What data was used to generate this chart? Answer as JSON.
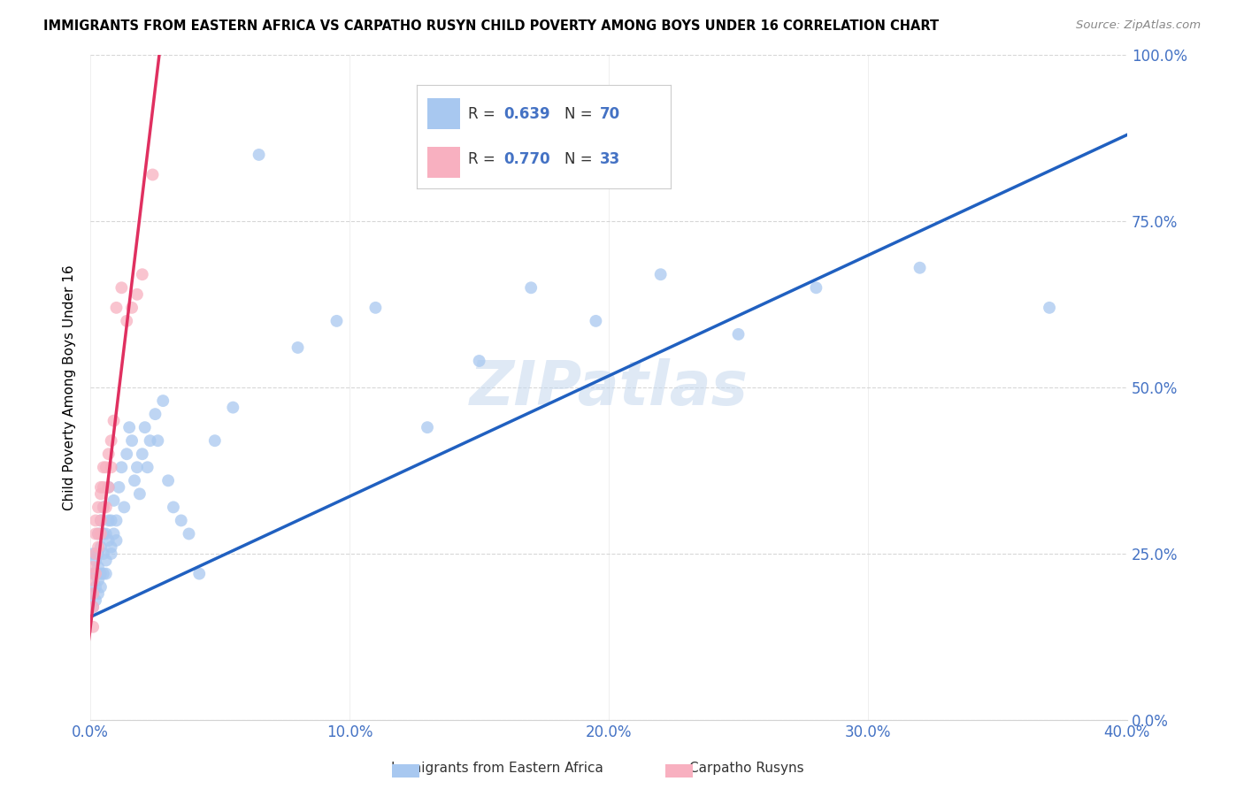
{
  "title": "IMMIGRANTS FROM EASTERN AFRICA VS CARPATHO RUSYN CHILD POVERTY AMONG BOYS UNDER 16 CORRELATION CHART",
  "source": "Source: ZipAtlas.com",
  "xlabel_blue": "Immigrants from Eastern Africa",
  "xlabel_pink": "Carpatho Rusyns",
  "ylabel": "Child Poverty Among Boys Under 16",
  "blue_R": 0.639,
  "blue_N": 70,
  "pink_R": 0.77,
  "pink_N": 33,
  "blue_color": "#A8C8F0",
  "pink_color": "#F8B0C0",
  "blue_line_color": "#2060C0",
  "pink_line_color": "#E03060",
  "watermark": "ZIPatlas",
  "xlim": [
    0.0,
    0.4
  ],
  "ylim": [
    0.0,
    1.0
  ],
  "blue_line_x0": 0.0,
  "blue_line_y0": 0.155,
  "blue_line_x1": 0.4,
  "blue_line_y1": 0.88,
  "pink_line_x0": 0.0,
  "pink_line_y0": 0.14,
  "pink_line_x1": 0.025,
  "pink_line_y1": 0.95,
  "pink_line_extend_x0": -0.003,
  "pink_line_extend_x1": 0.028,
  "blue_points_x": [
    0.001,
    0.001,
    0.001,
    0.001,
    0.002,
    0.002,
    0.002,
    0.002,
    0.003,
    0.003,
    0.003,
    0.003,
    0.003,
    0.004,
    0.004,
    0.004,
    0.004,
    0.005,
    0.005,
    0.005,
    0.005,
    0.006,
    0.006,
    0.006,
    0.007,
    0.007,
    0.007,
    0.008,
    0.008,
    0.008,
    0.009,
    0.009,
    0.01,
    0.01,
    0.011,
    0.012,
    0.013,
    0.014,
    0.015,
    0.016,
    0.017,
    0.018,
    0.019,
    0.02,
    0.021,
    0.022,
    0.023,
    0.025,
    0.026,
    0.028,
    0.03,
    0.032,
    0.035,
    0.038,
    0.042,
    0.048,
    0.055,
    0.065,
    0.08,
    0.095,
    0.11,
    0.13,
    0.15,
    0.17,
    0.195,
    0.22,
    0.25,
    0.28,
    0.32,
    0.37
  ],
  "blue_points_y": [
    0.19,
    0.22,
    0.17,
    0.25,
    0.2,
    0.24,
    0.18,
    0.22,
    0.25,
    0.21,
    0.19,
    0.28,
    0.23,
    0.26,
    0.22,
    0.3,
    0.2,
    0.25,
    0.32,
    0.22,
    0.28,
    0.24,
    0.28,
    0.22,
    0.3,
    0.27,
    0.35,
    0.26,
    0.3,
    0.25,
    0.28,
    0.33,
    0.3,
    0.27,
    0.35,
    0.38,
    0.32,
    0.4,
    0.44,
    0.42,
    0.36,
    0.38,
    0.34,
    0.4,
    0.44,
    0.38,
    0.42,
    0.46,
    0.42,
    0.48,
    0.36,
    0.32,
    0.3,
    0.28,
    0.22,
    0.42,
    0.47,
    0.85,
    0.56,
    0.6,
    0.62,
    0.44,
    0.54,
    0.65,
    0.6,
    0.67,
    0.58,
    0.65,
    0.68,
    0.62
  ],
  "pink_points_x": [
    0.001,
    0.001,
    0.001,
    0.001,
    0.001,
    0.002,
    0.002,
    0.002,
    0.002,
    0.003,
    0.003,
    0.003,
    0.004,
    0.004,
    0.004,
    0.004,
    0.005,
    0.005,
    0.005,
    0.006,
    0.006,
    0.007,
    0.007,
    0.008,
    0.008,
    0.009,
    0.01,
    0.012,
    0.014,
    0.016,
    0.018,
    0.02,
    0.024
  ],
  "pink_points_y": [
    0.17,
    0.21,
    0.14,
    0.19,
    0.23,
    0.25,
    0.28,
    0.22,
    0.3,
    0.28,
    0.32,
    0.26,
    0.3,
    0.35,
    0.28,
    0.34,
    0.38,
    0.32,
    0.35,
    0.38,
    0.32,
    0.4,
    0.35,
    0.42,
    0.38,
    0.45,
    0.62,
    0.65,
    0.6,
    0.62,
    0.64,
    0.67,
    0.82
  ]
}
